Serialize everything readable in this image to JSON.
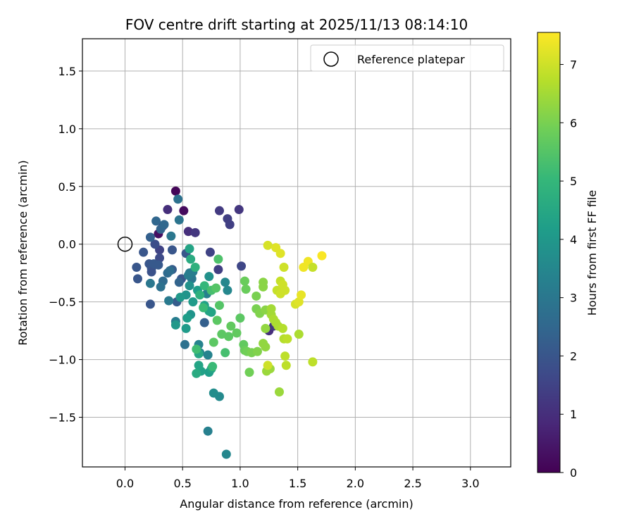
{
  "chart_data": {
    "type": "scatter",
    "title": "FOV centre drift starting at 2025/11/13 08:14:10",
    "xlabel": "Angular distance from reference (arcmin)",
    "ylabel": "Rotation from reference (arcmin)",
    "xlim": [
      -0.37,
      3.35
    ],
    "ylim": [
      -1.93,
      1.78
    ],
    "xticks": [
      0.0,
      0.5,
      1.0,
      1.5,
      2.0,
      2.5,
      3.0
    ],
    "xtick_labels": [
      "0.0",
      "0.5",
      "1.0",
      "1.5",
      "2.0",
      "2.5",
      "3.0"
    ],
    "yticks": [
      -1.5,
      -1.0,
      -0.5,
      0.0,
      0.5,
      1.0,
      1.5
    ],
    "ytick_labels": [
      "−1.5",
      "−1.0",
      "−0.5",
      "0.0",
      "0.5",
      "1.0",
      "1.5"
    ],
    "grid": true,
    "legend": {
      "position": "top-right",
      "entries": [
        "Reference platepar"
      ]
    },
    "reference_point": {
      "x": 0.0,
      "y": 0.0,
      "label": "Reference platepar"
    },
    "colorbar": {
      "label": "Hours from first FF file",
      "min": 0,
      "max": 7.55,
      "ticks": [
        0,
        1,
        2,
        3,
        4,
        5,
        6,
        7
      ],
      "tick_labels": [
        "0",
        "1",
        "2",
        "3",
        "4",
        "5",
        "6",
        "7"
      ],
      "colormap": "viridis"
    },
    "points": [
      {
        "x": 0.44,
        "y": 0.46,
        "t": 0.1
      },
      {
        "x": 0.51,
        "y": 0.29,
        "t": 0.2
      },
      {
        "x": 0.29,
        "y": 0.09,
        "t": 0.3
      },
      {
        "x": 0.33,
        "y": 0.16,
        "t": 0.6
      },
      {
        "x": 0.37,
        "y": 0.3,
        "t": 1.0
      },
      {
        "x": 0.55,
        "y": 0.11,
        "t": 1.0
      },
      {
        "x": 0.61,
        "y": 0.1,
        "t": 1.2
      },
      {
        "x": 0.82,
        "y": 0.29,
        "t": 1.3
      },
      {
        "x": 0.89,
        "y": 0.22,
        "t": 1.4
      },
      {
        "x": 0.91,
        "y": 0.17,
        "t": 1.4
      },
      {
        "x": 0.99,
        "y": 0.3,
        "t": 1.2
      },
      {
        "x": 1.01,
        "y": -0.19,
        "t": 1.6
      },
      {
        "x": 0.74,
        "y": -0.07,
        "t": 1.5
      },
      {
        "x": 0.81,
        "y": -0.22,
        "t": 1.4
      },
      {
        "x": 1.25,
        "y": -0.75,
        "t": 1.0
      },
      {
        "x": 1.29,
        "y": -0.71,
        "t": 1.2
      },
      {
        "x": 0.3,
        "y": -0.05,
        "t": 1.5
      },
      {
        "x": 0.3,
        "y": -0.12,
        "t": 1.7
      },
      {
        "x": 0.26,
        "y": 0.0,
        "t": 1.8
      },
      {
        "x": 0.16,
        "y": -0.07,
        "t": 2.0
      },
      {
        "x": 0.1,
        "y": -0.2,
        "t": 2.0
      },
      {
        "x": 0.11,
        "y": -0.3,
        "t": 2.0
      },
      {
        "x": 0.21,
        "y": -0.17,
        "t": 2.0
      },
      {
        "x": 0.23,
        "y": -0.21,
        "t": 2.0
      },
      {
        "x": 0.23,
        "y": -0.24,
        "t": 1.9
      },
      {
        "x": 0.22,
        "y": -0.52,
        "t": 2.0
      },
      {
        "x": 0.25,
        "y": -0.17,
        "t": 2.1
      },
      {
        "x": 0.29,
        "y": -0.18,
        "t": 2.1
      },
      {
        "x": 0.41,
        "y": -0.22,
        "t": 2.2
      },
      {
        "x": 0.41,
        "y": -0.05,
        "t": 2.0
      },
      {
        "x": 0.53,
        "y": -0.08,
        "t": 2.0
      },
      {
        "x": 0.49,
        "y": -0.3,
        "t": 2.0
      },
      {
        "x": 0.45,
        "y": -0.5,
        "t": 2.2
      },
      {
        "x": 0.47,
        "y": -0.33,
        "t": 2.4
      },
      {
        "x": 0.69,
        "y": -0.68,
        "t": 2.3
      },
      {
        "x": 0.52,
        "y": -0.87,
        "t": 2.8
      },
      {
        "x": 0.33,
        "y": -0.32,
        "t": 2.6
      },
      {
        "x": 0.31,
        "y": -0.37,
        "t": 2.8
      },
      {
        "x": 0.37,
        "y": -0.25,
        "t": 2.6
      },
      {
        "x": 0.39,
        "y": -0.23,
        "t": 2.7
      },
      {
        "x": 0.22,
        "y": 0.06,
        "t": 2.3
      },
      {
        "x": 0.27,
        "y": 0.2,
        "t": 2.5
      },
      {
        "x": 0.31,
        "y": 0.13,
        "t": 2.4
      },
      {
        "x": 0.34,
        "y": 0.17,
        "t": 2.5
      },
      {
        "x": 0.46,
        "y": 0.39,
        "t": 2.8
      },
      {
        "x": 0.47,
        "y": 0.21,
        "t": 2.9
      },
      {
        "x": 0.4,
        "y": 0.07,
        "t": 3.0
      },
      {
        "x": 0.22,
        "y": -0.34,
        "t": 3.0
      },
      {
        "x": 0.38,
        "y": -0.49,
        "t": 3.1
      },
      {
        "x": 0.44,
        "y": -0.67,
        "t": 3.2
      },
      {
        "x": 0.58,
        "y": -0.3,
        "t": 3.0
      },
      {
        "x": 0.56,
        "y": -0.25,
        "t": 3.1
      },
      {
        "x": 0.55,
        "y": -0.27,
        "t": 3.2
      },
      {
        "x": 0.59,
        "y": -0.24,
        "t": 3.2
      },
      {
        "x": 0.64,
        "y": -0.87,
        "t": 3.4
      },
      {
        "x": 0.65,
        "y": -0.94,
        "t": 3.5
      },
      {
        "x": 0.72,
        "y": -0.96,
        "t": 3.4
      },
      {
        "x": 0.71,
        "y": -0.43,
        "t": 3.3
      },
      {
        "x": 0.72,
        "y": -1.62,
        "t": 3.3
      },
      {
        "x": 0.88,
        "y": -1.82,
        "t": 3.5
      },
      {
        "x": 0.82,
        "y": -1.32,
        "t": 3.6
      },
      {
        "x": 0.77,
        "y": -1.29,
        "t": 3.7
      },
      {
        "x": 0.87,
        "y": -0.33,
        "t": 3.5
      },
      {
        "x": 0.89,
        "y": -0.4,
        "t": 3.5
      },
      {
        "x": 0.73,
        "y": -0.28,
        "t": 3.8
      },
      {
        "x": 0.56,
        "y": -0.36,
        "t": 3.8
      },
      {
        "x": 0.57,
        "y": -0.61,
        "t": 3.9
      },
      {
        "x": 0.53,
        "y": -0.44,
        "t": 3.9
      },
      {
        "x": 0.48,
        "y": -0.46,
        "t": 4.0
      },
      {
        "x": 0.44,
        "y": -0.7,
        "t": 4.0
      },
      {
        "x": 0.53,
        "y": -0.73,
        "t": 4.1
      },
      {
        "x": 0.54,
        "y": -0.64,
        "t": 4.2
      },
      {
        "x": 0.59,
        "y": -0.5,
        "t": 4.1
      },
      {
        "x": 0.63,
        "y": -0.4,
        "t": 4.2
      },
      {
        "x": 0.69,
        "y": -0.53,
        "t": 4.3
      },
      {
        "x": 0.73,
        "y": -0.58,
        "t": 4.4
      },
      {
        "x": 0.75,
        "y": -0.59,
        "t": 4.4
      },
      {
        "x": 0.73,
        "y": -1.11,
        "t": 4.2
      },
      {
        "x": 0.75,
        "y": -1.08,
        "t": 4.4
      },
      {
        "x": 0.66,
        "y": -1.1,
        "t": 4.3
      },
      {
        "x": 0.64,
        "y": -1.05,
        "t": 4.4
      },
      {
        "x": 0.62,
        "y": -1.12,
        "t": 4.6
      },
      {
        "x": 0.64,
        "y": -0.95,
        "t": 4.5
      },
      {
        "x": 0.56,
        "y": -0.04,
        "t": 4.4
      },
      {
        "x": 0.57,
        "y": -0.13,
        "t": 4.6
      },
      {
        "x": 0.61,
        "y": -0.2,
        "t": 4.8
      },
      {
        "x": 0.65,
        "y": -0.44,
        "t": 4.8
      },
      {
        "x": 0.69,
        "y": -0.36,
        "t": 5.0
      },
      {
        "x": 0.68,
        "y": -0.55,
        "t": 5.1
      },
      {
        "x": 0.62,
        "y": -0.91,
        "t": 5.2
      },
      {
        "x": 0.76,
        "y": -1.06,
        "t": 5.1
      },
      {
        "x": 0.87,
        "y": -0.94,
        "t": 5.3
      },
      {
        "x": 0.75,
        "y": -0.4,
        "t": 5.3
      },
      {
        "x": 0.79,
        "y": -0.38,
        "t": 5.5
      },
      {
        "x": 0.81,
        "y": -0.13,
        "t": 5.4
      },
      {
        "x": 0.82,
        "y": -0.53,
        "t": 5.5
      },
      {
        "x": 0.8,
        "y": -0.66,
        "t": 5.6
      },
      {
        "x": 0.84,
        "y": -0.78,
        "t": 5.6
      },
      {
        "x": 0.77,
        "y": -0.85,
        "t": 5.6
      },
      {
        "x": 0.9,
        "y": -0.8,
        "t": 5.6
      },
      {
        "x": 0.92,
        "y": -0.71,
        "t": 5.7
      },
      {
        "x": 0.97,
        "y": -0.77,
        "t": 5.7
      },
      {
        "x": 1.0,
        "y": -0.64,
        "t": 5.6
      },
      {
        "x": 1.04,
        "y": -0.32,
        "t": 5.8
      },
      {
        "x": 1.05,
        "y": -0.39,
        "t": 5.8
      },
      {
        "x": 1.03,
        "y": -0.87,
        "t": 5.7
      },
      {
        "x": 1.04,
        "y": -0.92,
        "t": 5.8
      },
      {
        "x": 1.06,
        "y": -0.93,
        "t": 5.9
      },
      {
        "x": 1.08,
        "y": -1.11,
        "t": 5.9
      },
      {
        "x": 1.1,
        "y": -0.94,
        "t": 6.0
      },
      {
        "x": 1.14,
        "y": -0.45,
        "t": 6.0
      },
      {
        "x": 1.14,
        "y": -0.56,
        "t": 6.0
      },
      {
        "x": 1.17,
        "y": -0.6,
        "t": 6.1
      },
      {
        "x": 1.15,
        "y": -0.93,
        "t": 6.1
      },
      {
        "x": 1.2,
        "y": -0.37,
        "t": 6.2
      },
      {
        "x": 1.2,
        "y": -0.33,
        "t": 6.2
      },
      {
        "x": 1.22,
        "y": -0.57,
        "t": 6.2
      },
      {
        "x": 1.22,
        "y": -0.73,
        "t": 6.3
      },
      {
        "x": 1.2,
        "y": -0.86,
        "t": 6.3
      },
      {
        "x": 1.22,
        "y": -0.89,
        "t": 6.3
      },
      {
        "x": 1.23,
        "y": -1.1,
        "t": 6.4
      },
      {
        "x": 1.26,
        "y": -1.08,
        "t": 6.4
      },
      {
        "x": 1.27,
        "y": -0.56,
        "t": 6.5
      },
      {
        "x": 1.27,
        "y": -0.61,
        "t": 6.5
      },
      {
        "x": 1.29,
        "y": -0.65,
        "t": 6.6
      },
      {
        "x": 1.31,
        "y": -0.68,
        "t": 6.6
      },
      {
        "x": 1.33,
        "y": -0.71,
        "t": 6.6
      },
      {
        "x": 1.34,
        "y": -1.28,
        "t": 6.4
      },
      {
        "x": 1.37,
        "y": -0.73,
        "t": 6.7
      },
      {
        "x": 1.38,
        "y": -0.82,
        "t": 6.7
      },
      {
        "x": 1.39,
        "y": -0.97,
        "t": 6.8
      },
      {
        "x": 1.4,
        "y": -1.05,
        "t": 6.8
      },
      {
        "x": 1.41,
        "y": -0.82,
        "t": 6.8
      },
      {
        "x": 1.32,
        "y": -0.4,
        "t": 6.9
      },
      {
        "x": 1.35,
        "y": -0.32,
        "t": 6.9
      },
      {
        "x": 1.35,
        "y": -0.43,
        "t": 7.0
      },
      {
        "x": 1.37,
        "y": -0.35,
        "t": 7.0
      },
      {
        "x": 1.39,
        "y": -0.4,
        "t": 7.0
      },
      {
        "x": 1.38,
        "y": -0.2,
        "t": 7.0
      },
      {
        "x": 1.24,
        "y": -0.01,
        "t": 7.1
      },
      {
        "x": 1.31,
        "y": -0.03,
        "t": 7.2
      },
      {
        "x": 1.35,
        "y": -0.08,
        "t": 7.2
      },
      {
        "x": 1.48,
        "y": -0.52,
        "t": 7.1
      },
      {
        "x": 1.51,
        "y": -0.5,
        "t": 7.2
      },
      {
        "x": 1.53,
        "y": -0.44,
        "t": 7.3
      },
      {
        "x": 1.55,
        "y": -0.2,
        "t": 7.4
      },
      {
        "x": 1.59,
        "y": -0.15,
        "t": 7.4
      },
      {
        "x": 1.63,
        "y": -0.2,
        "t": 6.9
      },
      {
        "x": 1.71,
        "y": -0.1,
        "t": 7.5
      },
      {
        "x": 1.51,
        "y": -0.78,
        "t": 6.6
      },
      {
        "x": 1.63,
        "y": -1.02,
        "t": 6.8
      },
      {
        "x": 1.24,
        "y": -1.05,
        "t": 7.0
      }
    ]
  }
}
